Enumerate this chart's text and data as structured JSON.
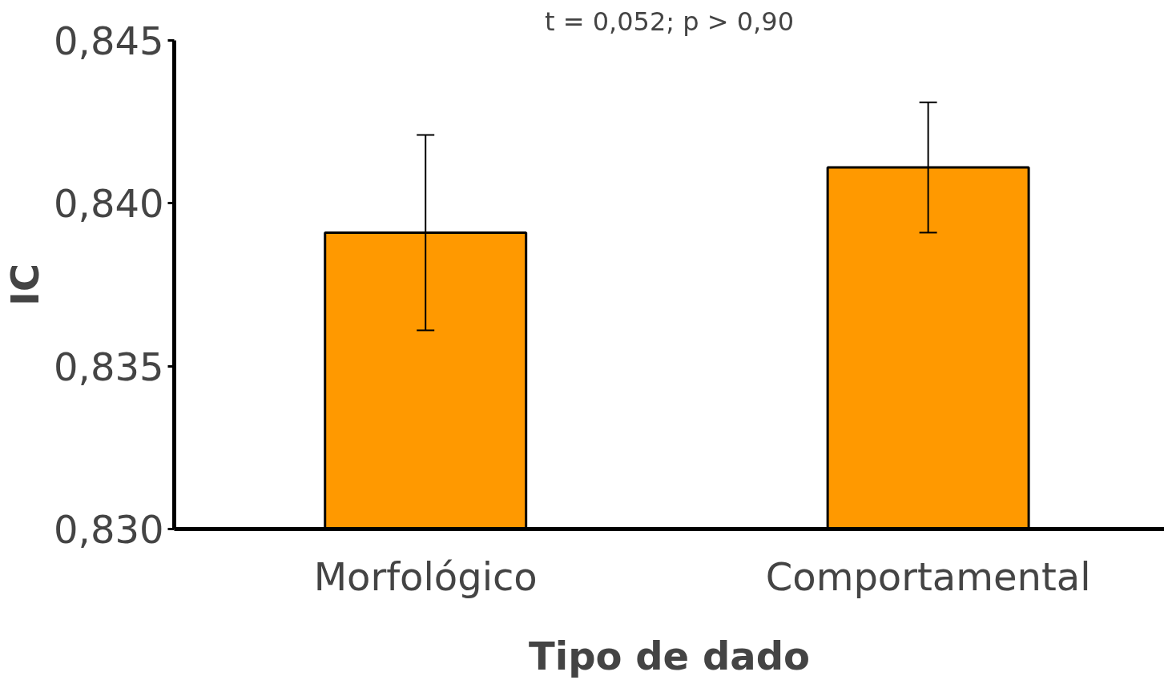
{
  "chart_data": {
    "type": "bar",
    "xlabel": "Tipo de dado",
    "ylabel": "IC",
    "annotations": [
      "t = 0,052; p > 0,90"
    ],
    "categories": [
      "Morfológico",
      "Comportamental"
    ],
    "values": [
      0.8391,
      0.8411
    ],
    "errors": [
      0.003,
      0.002
    ],
    "color": "#ff9900",
    "ylim": [
      0.83,
      0.845
    ],
    "yticks": [
      {
        "value": 0.83,
        "label": "0,830"
      },
      {
        "value": 0.835,
        "label": "0,835"
      },
      {
        "value": 0.84,
        "label": "0,840"
      },
      {
        "value": 0.845,
        "label": "0,845"
      }
    ]
  }
}
